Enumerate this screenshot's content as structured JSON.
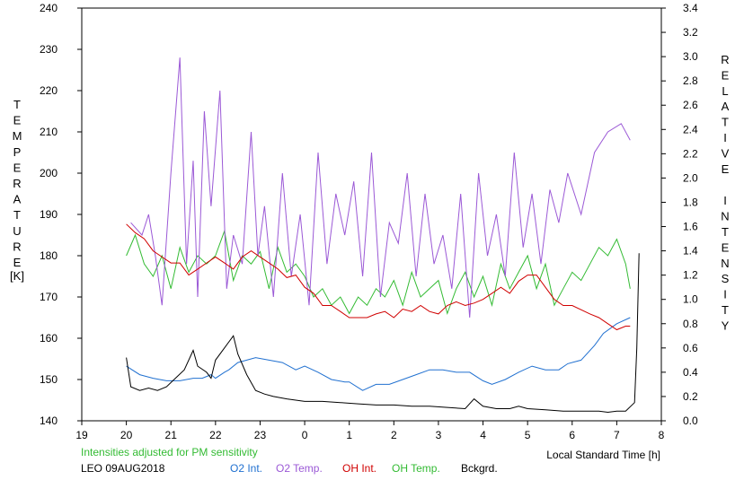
{
  "chart_data": {
    "type": "line",
    "note_text": "Intensities adjusted for PM sensitivity",
    "station_date": "LEO 09AUG2018",
    "xlabel": "Local Standard Time [h]",
    "ylabel_left": "TEMPERATURE",
    "ylabel_left_unit": "[K]",
    "ylabel_right": "RELATIVE INTENSITY",
    "x_axis": {
      "min": 0,
      "max": 13,
      "tick_step": 1,
      "tick_labels": [
        "19",
        "20",
        "21",
        "22",
        "23",
        "0",
        "1",
        "2",
        "3",
        "4",
        "5",
        "6",
        "7",
        "8"
      ]
    },
    "y_left": {
      "min": 140,
      "max": 240,
      "tick_step": 10
    },
    "y_right": {
      "min": 0.0,
      "max": 3.4,
      "tick_step": 0.2,
      "tick_labels": [
        "0.0",
        "0.2",
        "0.4",
        "0.6",
        "0.8",
        "1.0",
        "1.2",
        "1.4",
        "1.6",
        "1.8",
        "2.0",
        "2.2",
        "2.4",
        "2.6",
        "2.8",
        "3.0",
        "3.2",
        "3.4"
      ]
    },
    "grid": false,
    "legend_position": "bottom",
    "series": [
      {
        "name": "O2 Int.",
        "color": "#2070d0",
        "axis": "right",
        "x": [
          1.0,
          1.3,
          1.6,
          1.9,
          2.2,
          2.5,
          2.7,
          2.9,
          3.0,
          3.2,
          3.3,
          3.5,
          3.7,
          3.9,
          4.2,
          4.5,
          4.8,
          5.0,
          5.3,
          5.6,
          5.9,
          6.0,
          6.3,
          6.6,
          6.9,
          7.2,
          7.5,
          7.8,
          8.1,
          8.4,
          8.7,
          9.0,
          9.2,
          9.5,
          9.8,
          10.1,
          10.4,
          10.7,
          10.9,
          11.2,
          11.5,
          11.7,
          12.0,
          12.3
        ],
        "y": [
          0.45,
          0.38,
          0.35,
          0.33,
          0.33,
          0.35,
          0.35,
          0.38,
          0.35,
          0.4,
          0.42,
          0.48,
          0.5,
          0.52,
          0.5,
          0.48,
          0.42,
          0.45,
          0.4,
          0.34,
          0.32,
          0.32,
          0.25,
          0.3,
          0.3,
          0.34,
          0.38,
          0.42,
          0.42,
          0.4,
          0.4,
          0.33,
          0.3,
          0.34,
          0.4,
          0.45,
          0.42,
          0.42,
          0.47,
          0.5,
          0.62,
          0.72,
          0.8,
          0.85
        ]
      },
      {
        "name": "O2 Temp.",
        "color": "#9b59d6",
        "axis": "left",
        "x": [
          1.1,
          1.35,
          1.5,
          1.65,
          1.8,
          2.0,
          2.2,
          2.35,
          2.5,
          2.6,
          2.75,
          2.9,
          3.1,
          3.25,
          3.4,
          3.6,
          3.8,
          3.95,
          4.1,
          4.3,
          4.5,
          4.7,
          4.9,
          5.1,
          5.3,
          5.5,
          5.7,
          5.9,
          6.1,
          6.3,
          6.5,
          6.7,
          6.9,
          7.1,
          7.3,
          7.5,
          7.7,
          7.9,
          8.1,
          8.3,
          8.5,
          8.7,
          8.9,
          9.1,
          9.3,
          9.5,
          9.7,
          9.9,
          10.1,
          10.3,
          10.5,
          10.7,
          10.9,
          11.2,
          11.5,
          11.8,
          12.1,
          12.3
        ],
        "y": [
          188,
          185,
          190,
          180,
          168,
          200,
          228,
          178,
          203,
          170,
          215,
          192,
          220,
          172,
          185,
          178,
          210,
          180,
          192,
          170,
          200,
          175,
          190,
          168,
          205,
          178,
          195,
          185,
          198,
          175,
          205,
          170,
          188,
          183,
          200,
          175,
          195,
          178,
          185,
          172,
          195,
          165,
          200,
          180,
          190,
          175,
          205,
          182,
          195,
          178,
          196,
          188,
          200,
          190,
          205,
          210,
          212,
          208
        ]
      },
      {
        "name": "OH Int.",
        "color": "#d00000",
        "axis": "right",
        "x": [
          1.0,
          1.2,
          1.4,
          1.6,
          1.8,
          2.0,
          2.2,
          2.4,
          2.6,
          2.8,
          3.0,
          3.2,
          3.4,
          3.6,
          3.8,
          4.0,
          4.2,
          4.4,
          4.6,
          4.8,
          5.0,
          5.2,
          5.4,
          5.6,
          5.8,
          6.0,
          6.2,
          6.4,
          6.6,
          6.8,
          7.0,
          7.2,
          7.4,
          7.6,
          7.8,
          8.0,
          8.2,
          8.4,
          8.6,
          8.8,
          9.0,
          9.2,
          9.4,
          9.6,
          9.8,
          10.0,
          10.2,
          10.4,
          10.6,
          10.8,
          11.0,
          11.4,
          11.6,
          11.8,
          12.0,
          12.2,
          12.3
        ],
        "y": [
          1.62,
          1.55,
          1.5,
          1.4,
          1.35,
          1.3,
          1.3,
          1.2,
          1.25,
          1.3,
          1.35,
          1.3,
          1.25,
          1.35,
          1.4,
          1.35,
          1.3,
          1.25,
          1.18,
          1.2,
          1.1,
          1.05,
          0.95,
          0.95,
          0.9,
          0.85,
          0.85,
          0.85,
          0.88,
          0.9,
          0.85,
          0.92,
          0.9,
          0.95,
          0.9,
          0.88,
          0.95,
          0.98,
          0.95,
          0.97,
          1.0,
          1.05,
          1.1,
          1.05,
          1.15,
          1.2,
          1.2,
          1.1,
          1.0,
          0.95,
          0.95,
          0.88,
          0.85,
          0.8,
          0.75,
          0.78,
          0.78
        ]
      },
      {
        "name": "OH Temp.",
        "color": "#33bb33",
        "axis": "left",
        "x": [
          1.0,
          1.2,
          1.4,
          1.6,
          1.8,
          2.0,
          2.2,
          2.4,
          2.6,
          2.8,
          3.0,
          3.2,
          3.4,
          3.6,
          3.8,
          4.0,
          4.2,
          4.4,
          4.6,
          4.8,
          5.0,
          5.2,
          5.4,
          5.6,
          5.8,
          6.0,
          6.2,
          6.4,
          6.6,
          6.8,
          7.0,
          7.2,
          7.4,
          7.6,
          7.8,
          8.0,
          8.2,
          8.4,
          8.6,
          8.8,
          9.0,
          9.2,
          9.4,
          9.6,
          9.8,
          10.0,
          10.2,
          10.4,
          10.6,
          10.8,
          11.0,
          11.2,
          11.4,
          11.6,
          11.8,
          12.0,
          12.2,
          12.3
        ],
        "y": [
          180,
          185,
          178,
          175,
          180,
          172,
          182,
          176,
          180,
          178,
          180,
          186,
          174,
          180,
          178,
          181,
          172,
          182,
          176,
          178,
          175,
          170,
          172,
          168,
          170,
          166,
          170,
          168,
          172,
          170,
          174,
          168,
          176,
          170,
          172,
          174,
          166,
          172,
          176,
          170,
          175,
          168,
          178,
          172,
          176,
          180,
          172,
          178,
          168,
          172,
          176,
          174,
          178,
          182,
          180,
          184,
          178,
          172
        ]
      },
      {
        "name": "Bckgrd.",
        "color": "#000000",
        "axis": "right",
        "x": [
          1.0,
          1.1,
          1.3,
          1.5,
          1.7,
          1.9,
          2.1,
          2.3,
          2.5,
          2.6,
          2.8,
          2.9,
          3.0,
          3.2,
          3.4,
          3.5,
          3.7,
          3.9,
          4.1,
          4.3,
          4.6,
          5.0,
          5.4,
          5.8,
          6.2,
          6.6,
          7.0,
          7.4,
          7.8,
          8.2,
          8.6,
          8.8,
          9.0,
          9.3,
          9.6,
          9.8,
          10.0,
          10.4,
          10.8,
          11.2,
          11.6,
          11.8,
          12.0,
          12.2,
          12.4,
          12.45,
          12.5
        ],
        "y": [
          0.52,
          0.28,
          0.25,
          0.27,
          0.25,
          0.28,
          0.35,
          0.42,
          0.58,
          0.45,
          0.4,
          0.35,
          0.5,
          0.6,
          0.7,
          0.55,
          0.38,
          0.25,
          0.22,
          0.2,
          0.18,
          0.16,
          0.16,
          0.15,
          0.14,
          0.13,
          0.13,
          0.12,
          0.12,
          0.11,
          0.1,
          0.18,
          0.12,
          0.1,
          0.1,
          0.12,
          0.1,
          0.09,
          0.08,
          0.08,
          0.08,
          0.07,
          0.08,
          0.08,
          0.15,
          0.6,
          1.38
        ]
      }
    ]
  }
}
